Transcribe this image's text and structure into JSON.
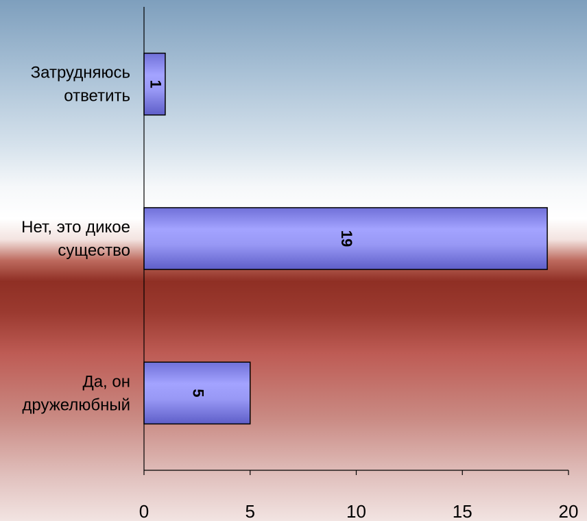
{
  "chart_data": {
    "type": "bar",
    "orientation": "horizontal",
    "categories": [
      "Затрудняюсь ответить",
      "Нет, это дикое существо",
      "Да, он дружелюбный"
    ],
    "category_lines": [
      [
        "Затрудняюсь",
        "ответить"
      ],
      [
        "Нет, это дикое",
        "существо"
      ],
      [
        "Да, он",
        "дружелюбный"
      ]
    ],
    "values": [
      1,
      19,
      5
    ],
    "data_labels": [
      "1",
      "19",
      "5"
    ],
    "xlim": [
      0,
      20
    ],
    "xticks": [
      0,
      5,
      10,
      15,
      20
    ],
    "xtick_labels": [
      "0",
      "5",
      "10",
      "15",
      "20"
    ],
    "grid": false,
    "legend": "none",
    "bar_color": "#8f8ff0",
    "bar_edge_color": "#000000"
  }
}
